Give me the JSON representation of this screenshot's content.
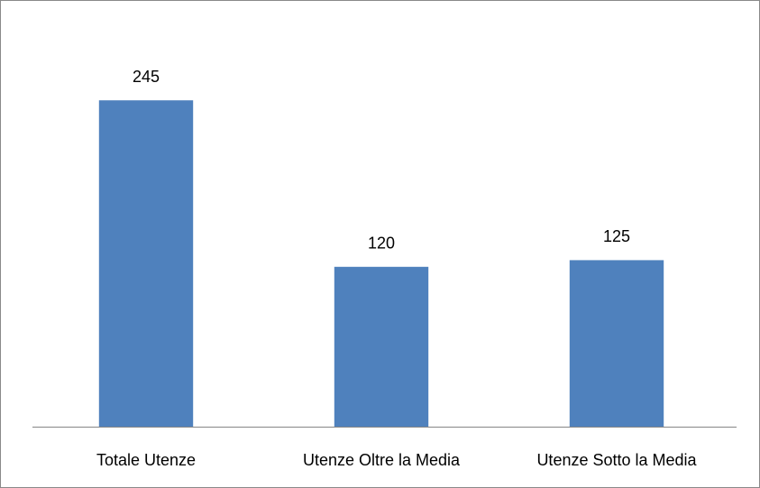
{
  "chart_data": {
    "type": "bar",
    "categories": [
      "Totale Utenze",
      "Utenze Oltre la Media",
      "Utenze Sotto la Media"
    ],
    "values": [
      245,
      120,
      125
    ],
    "color": "#4f81bd",
    "ylim": [
      0,
      300
    ],
    "grid": false,
    "data_labels": true
  }
}
